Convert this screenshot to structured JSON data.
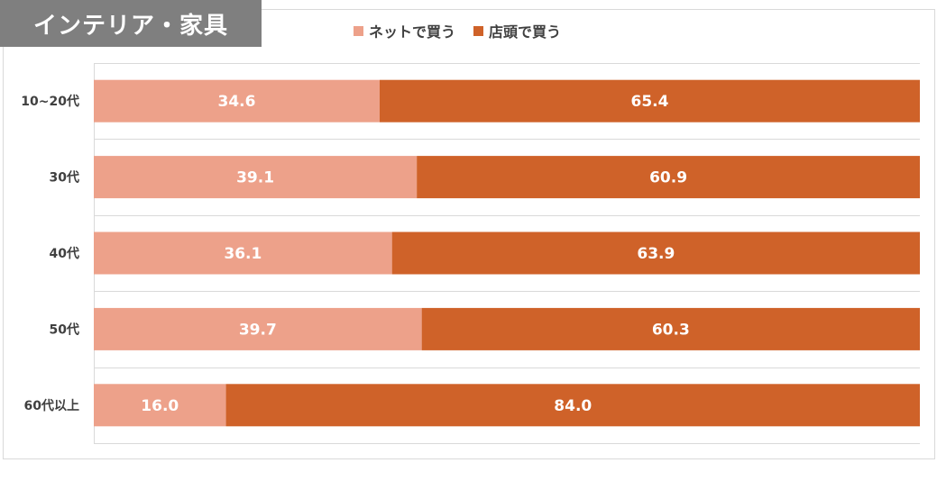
{
  "title": "インテリア・家具",
  "chart_data": {
    "type": "bar",
    "orientation": "horizontal",
    "stacked": true,
    "categories": [
      "10~20代",
      "30代",
      "40代",
      "50代",
      "60代以上"
    ],
    "series": [
      {
        "name": "ネットで買う",
        "color": "#eda18a",
        "values": [
          34.6,
          39.1,
          36.1,
          39.7,
          16.0
        ]
      },
      {
        "name": "店頭で買う",
        "color": "#cf6229",
        "values": [
          65.4,
          60.9,
          63.9,
          60.3,
          84.0
        ]
      }
    ],
    "xlim": [
      0,
      100
    ],
    "legend_position": "top",
    "grid": true
  }
}
